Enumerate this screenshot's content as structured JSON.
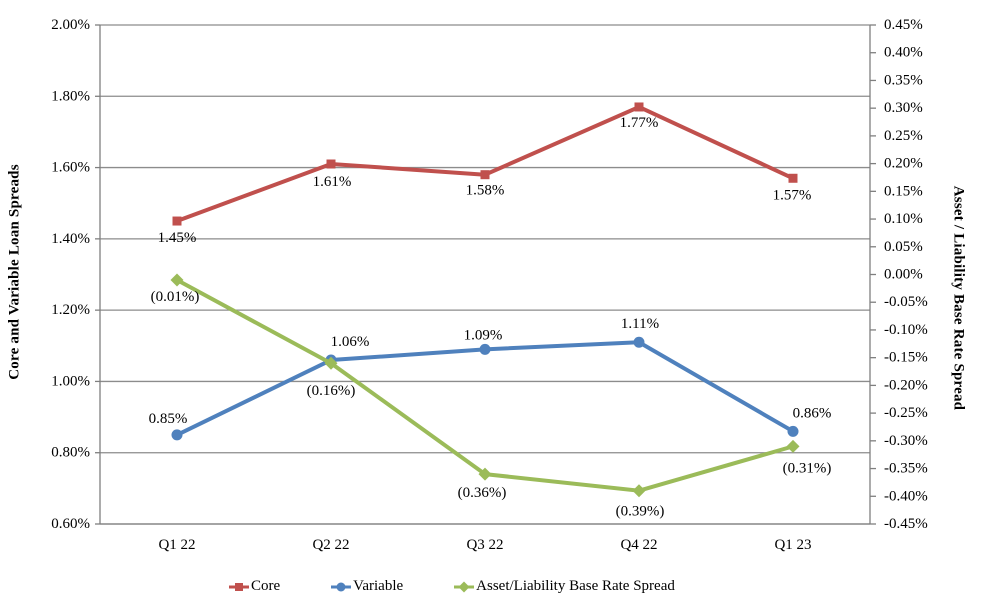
{
  "chart_data": {
    "type": "line",
    "categories": [
      "Q1 22",
      "Q2 22",
      "Q3 22",
      "Q4 22",
      "Q1 23"
    ],
    "series": [
      {
        "name": "Core",
        "axis": "left",
        "color": "#C0504D",
        "marker": "square",
        "values": [
          1.45,
          1.61,
          1.58,
          1.77,
          1.57
        ],
        "labels": [
          "1.45%",
          "1.61%",
          "1.58%",
          "1.77%",
          "1.57%"
        ],
        "label_position": "below"
      },
      {
        "name": "Variable",
        "axis": "left",
        "color": "#4F81BD",
        "marker": "circle",
        "values": [
          0.85,
          1.06,
          1.09,
          1.11,
          0.86
        ],
        "labels": [
          "0.85%",
          "1.06%",
          "1.09%",
          "1.11%",
          "0.86%"
        ],
        "label_position": "above"
      },
      {
        "name": "Asset/Liability Base Rate Spread",
        "axis": "right",
        "color": "#9BBB59",
        "marker": "diamond",
        "values": [
          -0.01,
          -0.16,
          -0.36,
          -0.39,
          -0.31
        ],
        "labels": [
          "(0.01%)",
          "(0.16%)",
          "(0.36%)",
          "(0.39%)",
          "(0.31%)"
        ],
        "label_position": "below"
      }
    ],
    "left_axis": {
      "title": "Core and Variable Loan Spreads",
      "min": 0.6,
      "max": 2.0,
      "step": 0.2,
      "tick_labels": [
        "2.00%",
        "1.80%",
        "1.60%",
        "1.40%",
        "1.20%",
        "1.00%",
        "0.80%",
        "0.60%"
      ]
    },
    "right_axis": {
      "title": "Asset / Liability Base Rate Spread",
      "min": -0.45,
      "max": 0.45,
      "step": 0.05,
      "tick_labels": [
        "0.45%",
        "0.40%",
        "0.35%",
        "0.30%",
        "0.25%",
        "0.20%",
        "0.15%",
        "0.10%",
        "0.05%",
        "0.00%",
        "-0.05%",
        "-0.10%",
        "-0.15%",
        "-0.20%",
        "-0.25%",
        "-0.30%",
        "-0.35%",
        "-0.40%",
        "-0.45%"
      ]
    },
    "grid": true,
    "legend_position": "bottom",
    "legend_entries": [
      "Core",
      "Variable",
      "Asset/Liability Base Rate Spread"
    ]
  },
  "colors": {
    "background": "#FFFFFF",
    "gridline": "#8C8C8C",
    "axis_line": "#7F7F7F",
    "text": "#000000",
    "core": "#C0504D",
    "variable": "#4F81BD",
    "asset_liability": "#9BBB59"
  }
}
